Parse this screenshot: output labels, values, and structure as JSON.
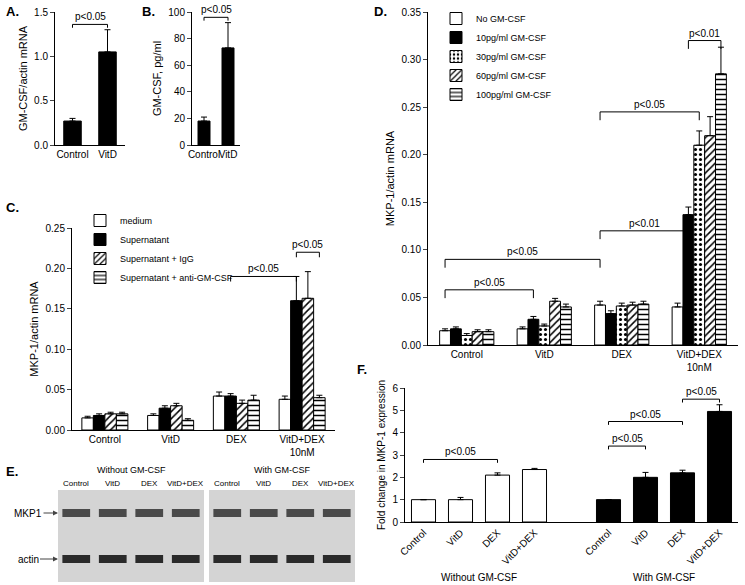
{
  "chart_data": [
    {
      "type": "bar",
      "title": "A.",
      "y_label": "GM-CSF/actin mRNA",
      "categories": [
        "Control",
        "VitD"
      ],
      "values": [
        0.27,
        1.05
      ],
      "errors": [
        0.03,
        0.25
      ],
      "color": "#000000",
      "ylim": [
        0,
        1.5
      ],
      "yticks": [
        {
          "value": 0,
          "label": "0.0"
        },
        0.5,
        {
          "value": 1,
          "label": "1.0"
        },
        1.5
      ],
      "significance": [
        {
          "from": [
            0,
            0
          ],
          "to": [
            1,
            0
          ],
          "y": 1.36,
          "label": "p<0.05"
        }
      ]
    },
    {
      "type": "bar",
      "title": "B.",
      "y_label": "GM-CSF, pg/ml",
      "categories": [
        "Control",
        "VitD"
      ],
      "values": [
        18,
        73
      ],
      "errors": [
        3,
        19
      ],
      "color": "#000000",
      "ylim": [
        0,
        100
      ],
      "yticks": [
        0,
        20,
        40,
        60,
        80,
        100
      ],
      "significance": [
        {
          "from": [
            0,
            0
          ],
          "to": [
            1,
            0
          ],
          "y": 96,
          "label": "p<0.05"
        }
      ]
    },
    {
      "type": "bar",
      "title": "C.",
      "y_label": "MKP-1/actin mRNA",
      "legend": "top-left",
      "categories": [
        "Control",
        "VitD",
        "DEX",
        "VitD+DEX\n10nM"
      ],
      "series": [
        {
          "name": "medium",
          "color": "#ffffff",
          "marker": "solid",
          "values": [
            0.015,
            0.018,
            0.042,
            0.038
          ],
          "errors": [
            0.002,
            0.002,
            0.005,
            0.004
          ]
        },
        {
          "name": "Supernatant",
          "color": "#000000",
          "marker": "solid",
          "values": [
            0.018,
            0.027,
            0.042,
            0.16
          ],
          "errors": [
            0.002,
            0.003,
            0.003,
            0.03
          ]
        },
        {
          "name": "Supernatant + IgG",
          "color": "#ffffff",
          "marker": "diagonal",
          "values": [
            0.02,
            0.03,
            0.033,
            0.163
          ],
          "errors": [
            0.002,
            0.003,
            0.004,
            0.033
          ]
        },
        {
          "name": "Supernatant + anti-GM-CSF",
          "color": "#ffffff",
          "marker": "horizontal",
          "values": [
            0.02,
            0.012,
            0.037,
            0.04
          ],
          "errors": [
            0.002,
            0.002,
            0.006,
            0.003
          ]
        }
      ],
      "ylim": [
        0,
        0.25
      ],
      "yticks": [
        {
          "value": 0,
          "label": "0.00"
        },
        0.05,
        {
          "value": 0.1,
          "label": "0.10"
        },
        0.15,
        {
          "value": 0.2,
          "label": "0.20"
        },
        0.25
      ],
      "significance": [
        {
          "from": [
            2,
            1
          ],
          "to": [
            3,
            1
          ],
          "y": 0.19,
          "label": "p<0.05"
        },
        {
          "from": [
            3,
            1
          ],
          "to": [
            3,
            3
          ],
          "y": 0.22,
          "label": "p<0.05"
        }
      ]
    },
    {
      "type": "bar",
      "title": "D.",
      "y_label": "MKP-1/actin mRNA",
      "legend": "top-left",
      "categories": [
        "Control",
        "VitD",
        "DEX",
        "VitD+DEX\n10nM"
      ],
      "series": [
        {
          "name": "No GM-CSF",
          "color": "#ffffff",
          "marker": "solid",
          "values": [
            0.015,
            0.017,
            0.042,
            0.04
          ],
          "errors": [
            0.002,
            0.002,
            0.004,
            0.004
          ]
        },
        {
          "name": "10pg/ml GM-CSF",
          "color": "#000000",
          "marker": "solid",
          "values": [
            0.017,
            0.027,
            0.033,
            0.137
          ],
          "errors": [
            0.002,
            0.003,
            0.003,
            0.008
          ]
        },
        {
          "name": "30pg/ml GM-CSF",
          "color": "#ffffff",
          "marker": "dots",
          "values": [
            0.01,
            0.02,
            0.041,
            0.21
          ],
          "errors": [
            0.002,
            0.002,
            0.003,
            0.015
          ]
        },
        {
          "name": "60pg/ml GM-CSF",
          "color": "#ffffff",
          "marker": "diagonal",
          "values": [
            0.014,
            0.046,
            0.042,
            0.22
          ],
          "errors": [
            0.002,
            0.003,
            0.003,
            0.02
          ]
        },
        {
          "name": "100pg/ml GM-CSF",
          "color": "#ffffff",
          "marker": "horizontal",
          "values": [
            0.014,
            0.04,
            0.043,
            0.285
          ],
          "errors": [
            0.002,
            0.003,
            0.003,
            0.028
          ]
        }
      ],
      "ylim": [
        0,
        0.35
      ],
      "yticks": [
        {
          "value": 0,
          "label": "0.00"
        },
        0.05,
        {
          "value": 0.1,
          "label": "0.10"
        },
        0.15,
        {
          "value": 0.2,
          "label": "0.20"
        },
        0.25,
        {
          "value": 0.3,
          "label": "0.30"
        },
        0.35
      ],
      "significance": [
        {
          "from": [
            0,
            0
          ],
          "to": [
            1,
            1
          ],
          "y": 0.058,
          "label": "p<0.05"
        },
        {
          "from": [
            0,
            0
          ],
          "to": [
            2,
            0
          ],
          "y": 0.09,
          "label": "p<0.05"
        },
        {
          "from": [
            2,
            0
          ],
          "to": [
            3,
            1
          ],
          "y": 0.12,
          "label": "p<0.01"
        },
        {
          "from": [
            2,
            0
          ],
          "to": [
            3,
            2
          ],
          "y": 0.245,
          "label": "p<0.05"
        },
        {
          "from": [
            3,
            1
          ],
          "to": [
            3,
            4
          ],
          "y": 0.32,
          "label": "p<0.01"
        }
      ]
    },
    {
      "type": "blot",
      "title": "E.",
      "panels": [
        {
          "title": "Without GM-CSF",
          "lanes": [
            "Control",
            "VitD",
            "DEX",
            "VitD+DEX"
          ]
        },
        {
          "title": "With GM-CSF",
          "lanes": [
            "Control",
            "VitD",
            "DEX",
            "VitD+DEX"
          ]
        }
      ],
      "rows": [
        "MKP1",
        "actin"
      ]
    },
    {
      "type": "bar",
      "title": "F.",
      "y_label": "Fold change in MKP-1 expression",
      "categories": [
        "Control",
        "VitD",
        "DEX",
        "VitD+DEX",
        null,
        "Control",
        "VitD",
        "DEX",
        "VitD+DEX"
      ],
      "series": [
        {
          "name": "Without GM-CSF",
          "color": "#ffffff",
          "marker": "solid",
          "values": [
            1,
            1,
            2.1,
            2.35,
            null,
            null,
            null,
            null,
            null
          ],
          "errors": [
            0,
            0.1,
            0.1,
            0.05,
            null,
            null,
            null,
            null,
            null
          ]
        },
        {
          "name": "With GM-CSF",
          "color": "#000000",
          "marker": "solid",
          "values": [
            null,
            null,
            null,
            null,
            null,
            1,
            2.0,
            2.2,
            4.95
          ],
          "errors": [
            null,
            null,
            null,
            null,
            null,
            0,
            0.22,
            0.12,
            0.3
          ]
        }
      ],
      "ylim": [
        0,
        6
      ],
      "yticks": [
        0,
        1,
        2,
        3,
        4,
        5,
        6
      ],
      "significance": [
        {
          "from": [
            0,
            0
          ],
          "to": [
            2,
            0
          ],
          "y": 2.8,
          "label": "p<0.05"
        },
        {
          "from": [
            5,
            1
          ],
          "to": [
            6,
            1
          ],
          "y": 3.4,
          "label": "p<0.05"
        },
        {
          "from": [
            5,
            1
          ],
          "to": [
            7,
            1
          ],
          "y": 4.5,
          "label": "p<0.05"
        },
        {
          "from": [
            7,
            1
          ],
          "to": [
            8,
            1
          ],
          "y": 5.5,
          "label": "p<0.05"
        }
      ]
    }
  ]
}
